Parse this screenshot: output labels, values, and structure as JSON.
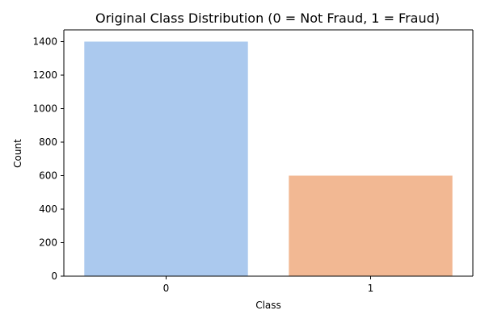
{
  "chart_data": {
    "type": "bar",
    "title": "Original Class Distribution (0 = Not Fraud, 1 = Fraud)",
    "xlabel": "Class",
    "ylabel": "Count",
    "categories": [
      "0",
      "1"
    ],
    "values": [
      1400,
      600
    ],
    "ylim": [
      0,
      1470
    ],
    "yticks": [
      0,
      200,
      400,
      600,
      800,
      1000,
      1200,
      1400
    ],
    "grid": false,
    "legend": "none",
    "colors": [
      "#abc9ee",
      "#f2b893"
    ]
  }
}
